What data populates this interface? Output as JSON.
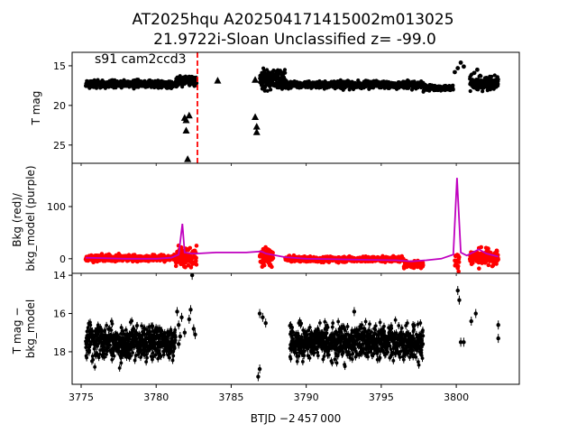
{
  "figure": {
    "title_line1": "AT2025hqu  A202504171415002m013025",
    "title_line2": "21.9722i-Sloan Unclassified z= -99.0",
    "xlabel": "BTJD −2 457 000",
    "x_range": [
      3774.4,
      3804.2
    ],
    "x_ticks": [
      3775,
      3780,
      3785,
      3790,
      3795,
      3800
    ],
    "x_tick_labels": [
      "3775",
      "3780",
      "3785",
      "3790",
      "3795",
      "3800"
    ]
  },
  "chart_data": [
    {
      "type": "scatter",
      "panel": "top",
      "ylabel": "T mag",
      "ylim": [
        27.3,
        13.3
      ],
      "inverted_y": true,
      "y_ticks": [
        15,
        20,
        25
      ],
      "y_tick_labels": [
        "15",
        "20",
        "25"
      ],
      "annotation": "s91 cam2ccd3",
      "vline": {
        "x": 3782.75,
        "color": "#ff0000",
        "style": "dashed"
      },
      "series": [
        {
          "name": "dense light curve",
          "marker": "circle",
          "color": "#000000",
          "segments": [
            {
              "x0": 3775.3,
              "x1": 3781.3,
              "y": 17.3,
              "spread": 0.45
            },
            {
              "x0": 3781.3,
              "x1": 3782.7,
              "y": 16.9,
              "spread": 0.6
            },
            {
              "x0": 3786.9,
              "x1": 3788.6,
              "y": 16.7,
              "spread": 1.2
            },
            {
              "x0": 3788.6,
              "x1": 3797.8,
              "y": 17.4,
              "spread": 0.45
            },
            {
              "x0": 3797.8,
              "x1": 3799.8,
              "y": 17.8,
              "spread": 0.35
            },
            {
              "x0": 3800.9,
              "x1": 3802.8,
              "y": 17.2,
              "spread": 0.9
            }
          ],
          "extra_points": [
            [
              3799.9,
              15.8
            ],
            [
              3800.1,
              15.3
            ],
            [
              3800.3,
              14.6
            ],
            [
              3800.5,
              15.1
            ],
            [
              3801.2,
              15.9
            ],
            [
              3801.4,
              15.5
            ]
          ]
        },
        {
          "name": "upper limits",
          "marker": "triangle",
          "color": "#000000",
          "points": [
            [
              3781.9,
              21.6
            ],
            [
              3782.0,
              23.2
            ],
            [
              3782.0,
              21.9
            ],
            [
              3782.1,
              26.8
            ],
            [
              3782.2,
              21.3
            ],
            [
              3784.1,
              16.9
            ],
            [
              3786.6,
              21.5
            ],
            [
              3786.7,
              22.7
            ],
            [
              3786.7,
              23.4
            ],
            [
              3786.6,
              16.8
            ],
            [
              3787.2,
              16.7
            ]
          ]
        }
      ]
    },
    {
      "type": "line",
      "panel": "middle",
      "ylabel": "Bkg (red)/\nbkg_model (purple)",
      "ylim": [
        -28,
        183
      ],
      "y_ticks": [
        0,
        100
      ],
      "y_tick_labels": [
        "0",
        "100"
      ],
      "series": [
        {
          "name": "bkg",
          "color": "#ff0000",
          "marker": "circle",
          "segments": [
            {
              "x0": 3775.3,
              "x1": 3781.2,
              "y": 1,
              "spread": 6
            },
            {
              "x0": 3781.2,
              "x1": 3782.7,
              "y": 3,
              "spread": 18
            },
            {
              "x0": 3786.9,
              "x1": 3787.8,
              "y": 3,
              "spread": 18
            },
            {
              "x0": 3788.6,
              "x1": 3796.5,
              "y": -1,
              "spread": 5
            },
            {
              "x0": 3796.5,
              "x1": 3797.8,
              "y": -11,
              "spread": 7
            },
            {
              "x0": 3799.9,
              "x1": 3800.2,
              "y": -5,
              "spread": 20
            },
            {
              "x0": 3800.9,
              "x1": 3802.8,
              "y": 3,
              "spread": 16
            }
          ]
        },
        {
          "name": "bkg_model",
          "color": "#bf00bf",
          "points": [
            [
              3775.3,
              2
            ],
            [
              3778.0,
              0
            ],
            [
              3780.0,
              0
            ],
            [
              3781.0,
              2
            ],
            [
              3781.5,
              8
            ],
            [
              3781.75,
              67
            ],
            [
              3781.9,
              12
            ],
            [
              3782.3,
              10
            ],
            [
              3782.8,
              10
            ],
            [
              3784.0,
              12
            ],
            [
              3786.0,
              12
            ],
            [
              3787.0,
              14
            ],
            [
              3787.3,
              10
            ],
            [
              3788.0,
              6
            ],
            [
              3788.6,
              3
            ],
            [
              3790.0,
              0
            ],
            [
              3792.0,
              -1
            ],
            [
              3794.0,
              -2
            ],
            [
              3796.0,
              -3
            ],
            [
              3797.0,
              -5
            ],
            [
              3798.0,
              -3
            ],
            [
              3799.0,
              0
            ],
            [
              3799.8,
              8
            ],
            [
              3800.05,
              155
            ],
            [
              3800.3,
              12
            ],
            [
              3800.7,
              6
            ],
            [
              3801.5,
              18
            ],
            [
              3802.0,
              10
            ],
            [
              3802.8,
              4
            ]
          ]
        }
      ]
    },
    {
      "type": "scatter",
      "panel": "bottom",
      "ylabel": "T mag −\nbkg_model",
      "ylim": [
        19.7,
        13.9
      ],
      "inverted_y": true,
      "y_ticks": [
        14,
        16,
        18
      ],
      "y_tick_labels": [
        "14",
        "16",
        "18"
      ],
      "series": [
        {
          "name": "T mag - bkg_model",
          "color": "#000000",
          "marker": "circle",
          "segments": [
            {
              "x0": 3775.3,
              "x1": 3781.3,
              "y": 17.5,
              "spread": 0.9
            },
            {
              "x0": 3788.9,
              "x1": 3797.8,
              "y": 17.5,
              "spread": 0.9
            }
          ],
          "extra_points": [
            [
              3781.5,
              16.6
            ],
            [
              3781.6,
              17.2
            ],
            [
              3781.5,
              17.6
            ],
            [
              3781.7,
              16.2
            ],
            [
              3781.9,
              17.0
            ],
            [
              3782.2,
              16.3
            ],
            [
              3782.3,
              15.8
            ],
            [
              3782.4,
              14.0
            ],
            [
              3782.5,
              16.8
            ],
            [
              3782.6,
              17.1
            ],
            [
              3781.4,
              15.9
            ],
            [
              3786.8,
              19.3
            ],
            [
              3786.9,
              18.9
            ],
            [
              3786.9,
              16.0
            ],
            [
              3787.1,
              16.2
            ],
            [
              3787.3,
              16.5
            ],
            [
              3793.2,
              15.9
            ],
            [
              3800.1,
              14.8
            ],
            [
              3800.2,
              15.3
            ],
            [
              3800.3,
              17.5
            ],
            [
              3800.5,
              17.5
            ],
            [
              3801.0,
              16.4
            ],
            [
              3801.3,
              16.0
            ],
            [
              3802.8,
              16.6
            ],
            [
              3802.8,
              17.3
            ]
          ]
        }
      ]
    }
  ]
}
